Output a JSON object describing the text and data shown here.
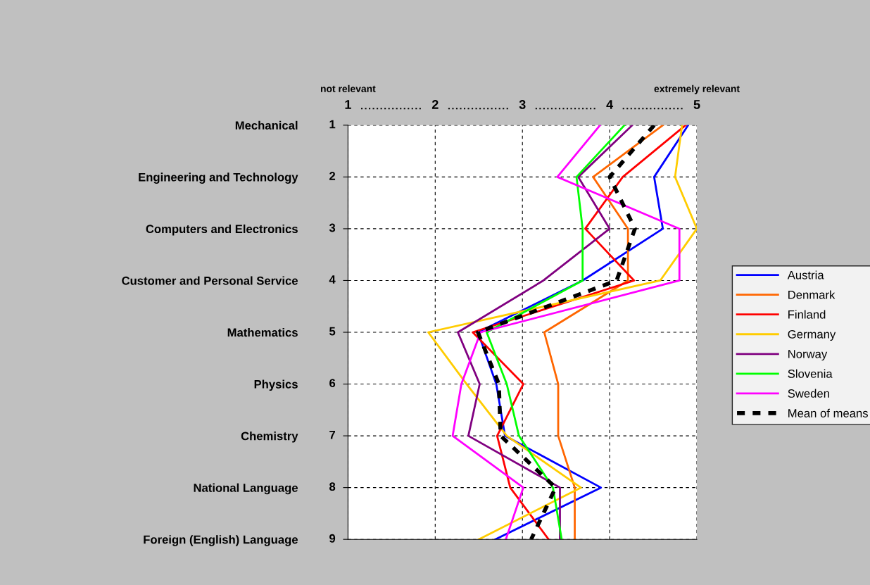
{
  "chart_data": {
    "type": "line",
    "orientation": "horizontal",
    "categories": [
      "Mechanical",
      "Engineering and Technology",
      "Computers and Electronics",
      "Customer and Personal Service",
      "Mathematics",
      "Physics",
      "Chemistry",
      "National Language",
      "Foreign (English) Language"
    ],
    "xlim": [
      1,
      5
    ],
    "xticks": [
      1,
      2,
      3,
      4,
      5
    ],
    "annotations": [
      "not relevant",
      "extremely relevant",
      "1",
      "2",
      "3",
      "4",
      "5",
      "6",
      "7",
      "8",
      "9"
    ],
    "grid": true,
    "legend": "right",
    "line_style": "solid",
    "marker": "none",
    "series": [
      {
        "name": "Austria",
        "color": "#0000ff",
        "values": [
          4.9,
          4.51,
          4.61,
          3.69,
          2.49,
          2.7,
          2.8,
          3.9,
          2.69
        ]
      },
      {
        "name": "Denmark",
        "color": "#ff6600",
        "values": [
          4.61,
          3.81,
          4.21,
          4.21,
          3.25,
          3.41,
          3.41,
          3.6,
          3.6
        ]
      },
      {
        "name": "Finland",
        "color": "#ff0000",
        "values": [
          4.87,
          4.15,
          3.72,
          4.28,
          2.43,
          3.01,
          2.71,
          2.86,
          3.3
        ]
      },
      {
        "name": "Germany",
        "color": "#ffcc00",
        "values": [
          4.83,
          4.75,
          5.0,
          4.58,
          1.92,
          2.36,
          2.82,
          3.67,
          2.5
        ]
      },
      {
        "name": "Norway",
        "color": "#800080",
        "values": [
          4.26,
          3.64,
          4.0,
          3.24,
          2.26,
          2.51,
          2.38,
          3.43,
          3.43
        ]
      },
      {
        "name": "Slovenia",
        "color": "#00ff00",
        "values": [
          4.17,
          3.62,
          3.69,
          3.69,
          2.59,
          2.82,
          2.96,
          3.35,
          3.45
        ]
      },
      {
        "name": "Sweden",
        "color": "#ff00ff",
        "values": [
          3.89,
          3.4,
          4.8,
          4.8,
          2.52,
          2.3,
          2.2,
          3.01,
          2.81
        ]
      },
      {
        "name": "Mean of means",
        "color": "#000000",
        "line_style": "dashed",
        "values": [
          4.51,
          4.0,
          4.29,
          4.08,
          2.49,
          2.73,
          2.75,
          3.38,
          3.1
        ]
      }
    ]
  }
}
